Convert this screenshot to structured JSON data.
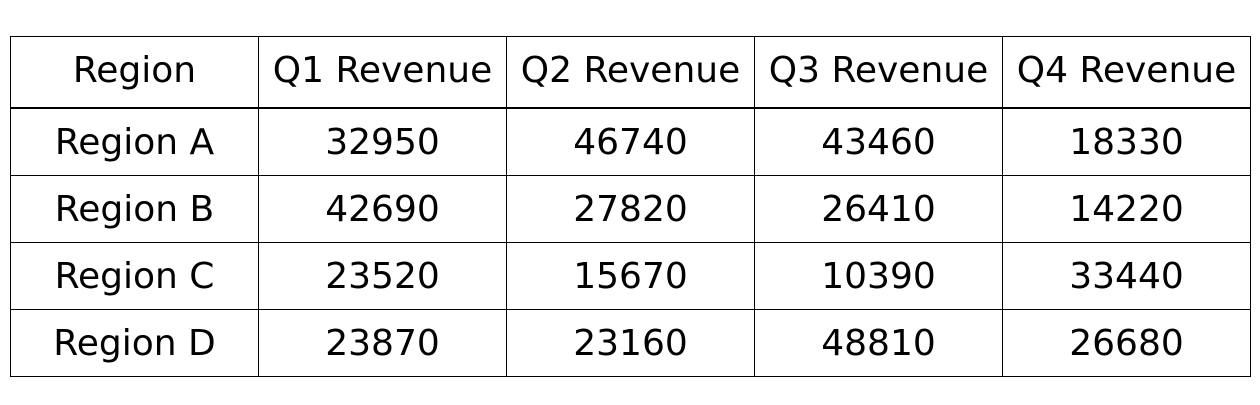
{
  "chart_data": {
    "type": "table",
    "columns": [
      "Region",
      "Q1 Revenue",
      "Q2 Revenue",
      "Q3 Revenue",
      "Q4 Revenue"
    ],
    "rows": [
      [
        "Region A",
        "32950",
        "46740",
        "43460",
        "18330"
      ],
      [
        "Region B",
        "42690",
        "27820",
        "26410",
        "14220"
      ],
      [
        "Region C",
        "23520",
        "15670",
        "10390",
        "33440"
      ],
      [
        "Region D",
        "23870",
        "23160",
        "48810",
        "26680"
      ]
    ]
  }
}
